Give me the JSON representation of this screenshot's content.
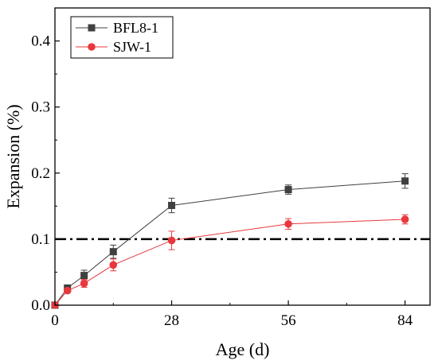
{
  "chart_data": {
    "type": "line",
    "title": "",
    "xlabel": "Age (d)",
    "ylabel": "Expansion (%)",
    "xlim": [
      0,
      90
    ],
    "ylim": [
      0,
      0.45
    ],
    "xticks": [
      0,
      28,
      56,
      84
    ],
    "xtick_labels": [
      "0",
      "28",
      "56",
      "84"
    ],
    "yticks": [
      0.0,
      0.1,
      0.2,
      0.3,
      0.4
    ],
    "ytick_labels": [
      "0.0",
      "0.1",
      "0.2",
      "0.3",
      "0.4"
    ],
    "grid": false,
    "legend_position": "top-left",
    "reference_line": {
      "y": 0.1,
      "style": "dash-dot",
      "color": "#000000"
    },
    "series": [
      {
        "name": "BFL8-1",
        "color": "#404040",
        "marker": "square",
        "x": [
          0,
          3,
          7,
          14,
          28,
          56,
          84
        ],
        "y": [
          0.0,
          0.026,
          0.045,
          0.081,
          0.151,
          0.175,
          0.188
        ],
        "err": [
          0.0,
          0.004,
          0.008,
          0.01,
          0.011,
          0.007,
          0.011
        ]
      },
      {
        "name": "SJW-1",
        "color": "#e8383d",
        "marker": "circle",
        "x": [
          0,
          3,
          7,
          14,
          28,
          56,
          84
        ],
        "y": [
          0.0,
          0.022,
          0.033,
          0.061,
          0.098,
          0.123,
          0.13
        ],
        "err": [
          0.0,
          0.003,
          0.006,
          0.009,
          0.014,
          0.008,
          0.007
        ]
      }
    ]
  }
}
